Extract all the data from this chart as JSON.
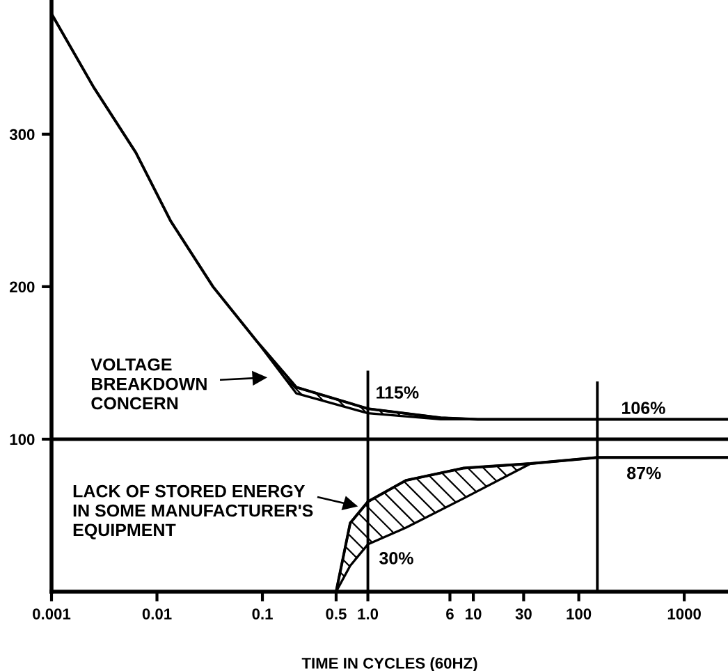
{
  "chart_data": {
    "type": "line",
    "xlabel": "TIME IN CYCLES (60HZ)",
    "log": "x",
    "xlim": [
      0.001,
      2600
    ],
    "ylim": [
      0,
      388
    ],
    "xticks": [
      0.001,
      0.01,
      0.1,
      0.5,
      {
        "value": 1,
        "label": "1.0"
      },
      6,
      10,
      30,
      100,
      1000
    ],
    "yticks": [
      100,
      200,
      300
    ],
    "grid": false,
    "marker": "none",
    "line_style": "solid",
    "series": [
      {
        "color": "#000000",
        "x": [
          0.001,
          0.0025,
          0.0063,
          0.0135,
          0.034,
          0.089,
          0.21,
          1,
          4.9,
          11,
          150,
          2600
        ],
        "values": [
          379,
          331,
          288,
          243,
          200,
          164,
          134,
          120,
          114,
          113,
          113,
          113
        ],
        "lower": [
          379,
          331,
          288,
          243,
          200,
          164,
          130,
          117,
          113,
          113,
          113,
          113
        ],
        "upper": [
          379,
          331,
          288,
          243,
          200,
          164,
          134,
          120,
          114,
          113,
          113,
          113
        ]
      },
      {
        "color": "#000000",
        "x": [
          0.5,
          0.68,
          1,
          2.3,
          8,
          35,
          150,
          2600
        ],
        "values": [
          0,
          45,
          59,
          73,
          81,
          84,
          88,
          88
        ],
        "lower": [
          0,
          17,
          31,
          42,
          61,
          84,
          88,
          88
        ],
        "upper": [
          0,
          45,
          59,
          73,
          81,
          84,
          88,
          88
        ]
      },
      {
        "color": "#000000",
        "x": [
          1,
          1
        ],
        "values": [
          144,
          0
        ]
      },
      {
        "color": "#000000",
        "x": [
          150,
          150
        ],
        "values": [
          137,
          0
        ]
      }
    ],
    "ref_lines": [
      {
        "axis": "y",
        "value": 100,
        "color": "#000000"
      }
    ],
    "annotations": [
      "VOLTAGE\nBREAKDOWN\nCONCERN",
      "LACK OF STORED ENERGY\nIN SOME MANUFACTURER'S\nEQUIPMENT",
      "115%",
      "30%",
      "106%",
      "87%"
    ]
  }
}
